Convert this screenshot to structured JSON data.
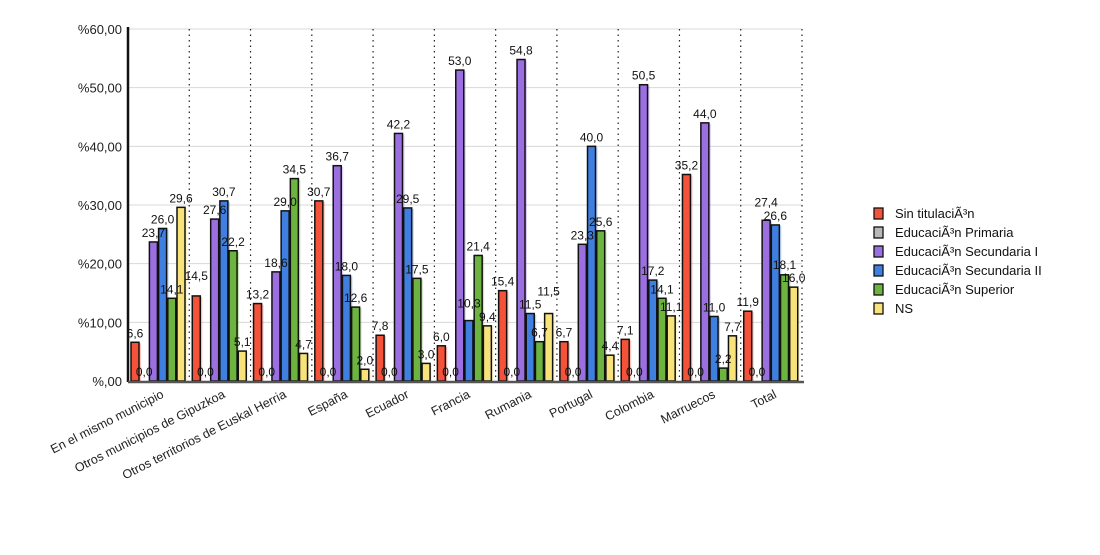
{
  "chart_data": {
    "type": "bar",
    "title": "",
    "xlabel": "",
    "ylabel": "",
    "ylim": [
      0,
      60
    ],
    "yticks": [
      "%,00",
      "%10,00",
      "%20,00",
      "%30,00",
      "%40,00",
      "%50,00",
      "%60,00"
    ],
    "ytick_values": [
      0,
      10,
      20,
      30,
      40,
      50,
      60
    ],
    "grid": true,
    "legend_position": "right",
    "categories": [
      "En el mismo municipio",
      "Otros municipios de Gipuzkoa",
      "Otros territorios de Euskal Herria",
      "España",
      "Ecuador",
      "Francia",
      "Rumania",
      "Portugal",
      "Colombia",
      "Marruecos",
      "Total"
    ],
    "series": [
      {
        "name": "Sin titulaciÃ³n",
        "color": "#f4533a",
        "values": [
          6.6,
          14.5,
          13.2,
          30.7,
          7.8,
          6.0,
          15.4,
          6.7,
          7.1,
          35.2,
          11.9
        ]
      },
      {
        "name": "EducaciÃ³n Primaria",
        "color": "#b8b8b8",
        "values": [
          0.0,
          0.0,
          0.0,
          0.0,
          0.0,
          0.0,
          0.0,
          0.0,
          0.0,
          0.0,
          0.0
        ]
      },
      {
        "name": "EducaciÃ³n Secundaria I",
        "color": "#9b6fe0",
        "values": [
          23.7,
          27.6,
          18.6,
          36.7,
          42.2,
          53.0,
          54.8,
          23.3,
          50.5,
          44.0,
          27.4
        ]
      },
      {
        "name": "EducaciÃ³n Secundaria II",
        "color": "#3f7fe0",
        "values": [
          26.0,
          30.7,
          29.0,
          18.0,
          29.5,
          10.3,
          11.5,
          40.0,
          17.2,
          11.0,
          26.6
        ]
      },
      {
        "name": "EducaciÃ³n Superior",
        "color": "#6cb33f",
        "values": [
          14.1,
          22.2,
          34.5,
          12.6,
          17.5,
          21.4,
          6.7,
          25.6,
          14.1,
          2.2,
          18.1
        ]
      },
      {
        "name": "NS",
        "color": "#f8e37a",
        "values": [
          29.6,
          5.1,
          4.7,
          2.0,
          3.0,
          9.4,
          11.5,
          4.4,
          11.1,
          7.7,
          16.0
        ]
      }
    ]
  }
}
